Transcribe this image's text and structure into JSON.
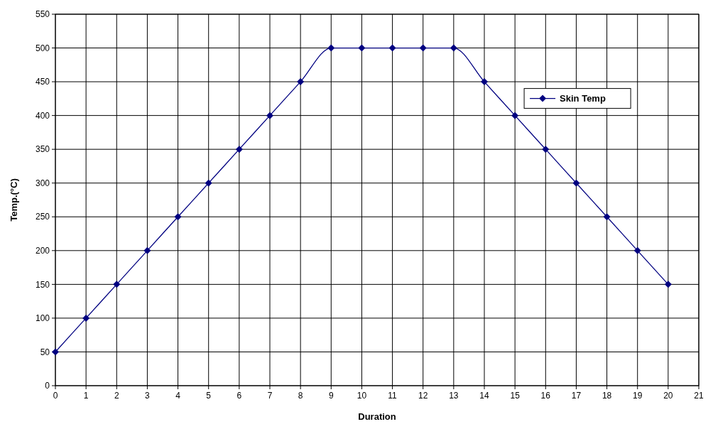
{
  "chart_data": {
    "type": "line",
    "xlabel": "Duration",
    "ylabel": "Temp.(°C)",
    "x": [
      0,
      1,
      2,
      3,
      4,
      5,
      6,
      7,
      8,
      9,
      10,
      11,
      12,
      13,
      14,
      15,
      16,
      17,
      18,
      19,
      20
    ],
    "series": [
      {
        "name": "Skin Temp",
        "color": "#000080",
        "values": [
          50,
          100,
          150,
          200,
          250,
          300,
          350,
          400,
          450,
          500,
          500,
          500,
          500,
          500,
          450,
          400,
          350,
          300,
          250,
          200,
          150
        ]
      }
    ],
    "xlim": [
      0,
      21
    ],
    "xticks": [
      0,
      1,
      2,
      3,
      4,
      5,
      6,
      7,
      8,
      9,
      10,
      11,
      12,
      13,
      14,
      15,
      16,
      17,
      18,
      19,
      20,
      21
    ],
    "ylim": [
      0,
      550
    ],
    "yticks": [
      0,
      50,
      100,
      150,
      200,
      250,
      300,
      350,
      400,
      450,
      500,
      550
    ],
    "grid": true,
    "legend": "right",
    "marker": "diamond",
    "line_style": "solid"
  }
}
